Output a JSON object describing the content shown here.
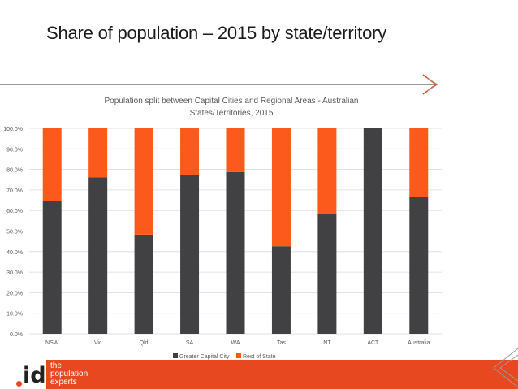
{
  "slide": {
    "title": "Share of population – 2015 by state/territory"
  },
  "brand": {
    "logo_text": "id",
    "tagline": [
      "the",
      "population",
      "experts"
    ],
    "accent_color": "#e8481f"
  },
  "chart_data": {
    "type": "bar",
    "stacked": true,
    "title_lines": [
      "Population split between Capital Cities and Regional Areas - Australian",
      "States/Territories, 2015"
    ],
    "categories": [
      "NSW",
      "Vic",
      "Qld",
      "SA",
      "WA",
      "Tas",
      "NT",
      "ACT",
      "Australia"
    ],
    "series": [
      {
        "name": "Greater Capital City",
        "color": "#414143",
        "values": [
          64.6,
          76.2,
          48.3,
          77.4,
          78.7,
          42.6,
          58.2,
          100.0,
          66.7
        ]
      },
      {
        "name": "Rest of State",
        "color": "#fc5a1c",
        "values": [
          35.4,
          23.8,
          51.7,
          22.6,
          21.3,
          57.4,
          41.8,
          0.0,
          33.3
        ]
      }
    ],
    "y_ticks": [
      "0.0%",
      "10.0%",
      "20.0%",
      "30.0%",
      "40.0%",
      "50.0%",
      "60.0%",
      "70.0%",
      "80.0%",
      "90.0%",
      "100.0%"
    ],
    "ylim": [
      0,
      100
    ],
    "grid": true,
    "legend": "bottom"
  }
}
